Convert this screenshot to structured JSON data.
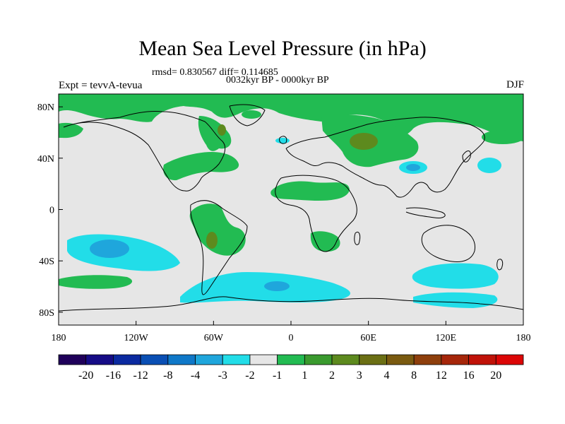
{
  "title": "Mean Sea Level Pressure (in hPa)",
  "stats": "rmsd= 0.830567 diff= 0.114685",
  "period": "0032kyr BP - 0000kyr BP",
  "experiment": "Expt = tevvA-tevua",
  "season": "DJF",
  "x_ticks": [
    "180",
    "120W",
    "60W",
    "0",
    "60E",
    "120E",
    "180"
  ],
  "y_ticks": [
    "80N",
    "40N",
    "0",
    "40S",
    "80S"
  ],
  "colorbar": {
    "colors": [
      "#1f005a",
      "#160c86",
      "#0b2aa0",
      "#0a4fb4",
      "#0f78c8",
      "#1fa6dc",
      "#22dde8",
      "#e6e6e6",
      "#22bb52",
      "#3a9a2e",
      "#5d8a1e",
      "#6b6f14",
      "#7a5a10",
      "#8e3f0c",
      "#a6260a",
      "#c01208",
      "#dc0606"
    ],
    "labels": [
      "-20",
      "-16",
      "-12",
      "-8",
      "-4",
      "-3",
      "-2",
      "-1",
      "1",
      "2",
      "3",
      "4",
      "8",
      "12",
      "16",
      "20"
    ]
  },
  "colors": {
    "background_field": "#e6e6e6",
    "light_blue": "#22dde8",
    "mid_blue": "#1fa6dc",
    "green": "#22bb52",
    "dark_green": "#5d8a1e"
  }
}
